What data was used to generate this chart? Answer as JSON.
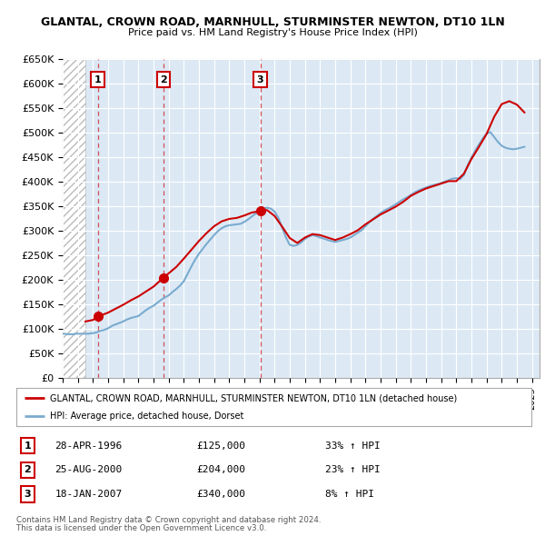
{
  "title": "GLANTAL, CROWN ROAD, MARNHULL, STURMINSTER NEWTON, DT10 1LN",
  "subtitle": "Price paid vs. HM Land Registry's House Price Index (HPI)",
  "ylim": [
    0,
    650000
  ],
  "yticks": [
    0,
    50000,
    100000,
    150000,
    200000,
    250000,
    300000,
    350000,
    400000,
    450000,
    500000,
    550000,
    600000,
    650000
  ],
  "ytick_labels": [
    "£0",
    "£50K",
    "£100K",
    "£150K",
    "£200K",
    "£250K",
    "£300K",
    "£350K",
    "£400K",
    "£450K",
    "£500K",
    "£550K",
    "£600K",
    "£650K"
  ],
  "xlim_start": 1994.0,
  "xlim_end": 2025.5,
  "hatch_end": 1995.5,
  "transactions": [
    {
      "id": 1,
      "date": "28-APR-1996",
      "year": 1996.32,
      "price": 125000,
      "pct": "33%",
      "direction": "↑"
    },
    {
      "id": 2,
      "date": "25-AUG-2000",
      "year": 2000.65,
      "price": 204000,
      "pct": "23%",
      "direction": "↑"
    },
    {
      "id": 3,
      "date": "18-JAN-2007",
      "year": 2007.05,
      "price": 340000,
      "pct": "8%",
      "direction": "↑"
    }
  ],
  "legend_label_red": "GLANTAL, CROWN ROAD, MARNHULL, STURMINSTER NEWTON, DT10 1LN (detached house)",
  "legend_label_blue": "HPI: Average price, detached house, Dorset",
  "footer1": "Contains HM Land Registry data © Crown copyright and database right 2024.",
  "footer2": "This data is licensed under the Open Government Licence v3.0.",
  "chart_bg": "#dce9f5",
  "red_color": "#cc0000",
  "blue_color": "#7aabcf",
  "hpi_data_years": [
    1994.0,
    1994.083,
    1994.167,
    1994.25,
    1994.333,
    1994.417,
    1994.5,
    1994.583,
    1994.667,
    1994.75,
    1994.833,
    1994.917,
    1995.0,
    1995.083,
    1995.167,
    1995.25,
    1995.333,
    1995.417,
    1995.5,
    1995.583,
    1995.667,
    1995.75,
    1995.833,
    1995.917,
    1996.0,
    1996.083,
    1996.167,
    1996.25,
    1996.333,
    1996.417,
    1996.5,
    1996.583,
    1996.667,
    1996.75,
    1996.833,
    1996.917,
    1997.0,
    1997.083,
    1997.167,
    1997.25,
    1997.333,
    1997.417,
    1997.5,
    1997.583,
    1997.667,
    1997.75,
    1997.833,
    1997.917,
    1998.0,
    1998.25,
    1998.5,
    1998.75,
    1999.0,
    1999.25,
    1999.5,
    1999.75,
    2000.0,
    2000.25,
    2000.5,
    2000.75,
    2001.0,
    2001.25,
    2001.5,
    2001.75,
    2002.0,
    2002.25,
    2002.5,
    2002.75,
    2003.0,
    2003.25,
    2003.5,
    2003.75,
    2004.0,
    2004.25,
    2004.5,
    2004.75,
    2005.0,
    2005.25,
    2005.5,
    2005.75,
    2006.0,
    2006.25,
    2006.5,
    2006.75,
    2007.0,
    2007.25,
    2007.5,
    2007.75,
    2008.0,
    2008.25,
    2008.5,
    2008.75,
    2009.0,
    2009.25,
    2009.5,
    2009.75,
    2010.0,
    2010.25,
    2010.5,
    2010.75,
    2011.0,
    2011.25,
    2011.5,
    2011.75,
    2012.0,
    2012.25,
    2012.5,
    2012.75,
    2013.0,
    2013.25,
    2013.5,
    2013.75,
    2014.0,
    2014.25,
    2014.5,
    2014.75,
    2015.0,
    2015.25,
    2015.5,
    2015.75,
    2016.0,
    2016.25,
    2016.5,
    2016.75,
    2017.0,
    2017.25,
    2017.5,
    2017.75,
    2018.0,
    2018.25,
    2018.5,
    2018.75,
    2019.0,
    2019.25,
    2019.5,
    2019.75,
    2020.0,
    2020.25,
    2020.5,
    2020.75,
    2021.0,
    2021.25,
    2021.5,
    2021.75,
    2022.0,
    2022.25,
    2022.5,
    2022.75,
    2023.0,
    2023.25,
    2023.5,
    2023.75,
    2024.0,
    2024.25,
    2024.5
  ],
  "hpi_data_values": [
    90000,
    90000,
    90000,
    89000,
    89000,
    89000,
    89000,
    89000,
    89000,
    89000,
    90000,
    90000,
    90000,
    90000,
    90000,
    90000,
    90000,
    90000,
    90000,
    90000,
    90000,
    90000,
    91000,
    91000,
    91000,
    92000,
    92000,
    93000,
    94000,
    95000,
    96000,
    97000,
    97000,
    98000,
    99000,
    100000,
    101000,
    103000,
    104000,
    106000,
    107000,
    108000,
    109000,
    110000,
    111000,
    112000,
    113000,
    114000,
    115000,
    119000,
    122000,
    124000,
    126000,
    132000,
    138000,
    143000,
    147000,
    153000,
    159000,
    164000,
    168000,
    175000,
    181000,
    188000,
    197000,
    212000,
    227000,
    241000,
    253000,
    263000,
    273000,
    282000,
    291000,
    299000,
    305000,
    309000,
    311000,
    312000,
    313000,
    314000,
    318000,
    323000,
    329000,
    335000,
    341000,
    345000,
    347000,
    345000,
    339000,
    326000,
    306000,
    286000,
    271000,
    269000,
    271000,
    276000,
    283000,
    288000,
    291000,
    289000,
    286000,
    284000,
    281000,
    279000,
    277000,
    279000,
    281000,
    283000,
    286000,
    291000,
    296000,
    301000,
    309000,
    317000,
    324000,
    330000,
    336000,
    341000,
    345000,
    349000,
    354000,
    359000,
    364000,
    368000,
    373000,
    378000,
    382000,
    385000,
    388000,
    391000,
    393000,
    395000,
    397000,
    400000,
    403000,
    406000,
    407000,
    405000,
    413000,
    433000,
    449000,
    463000,
    476000,
    488000,
    498000,
    501000,
    491000,
    481000,
    473000,
    469000,
    467000,
    466000,
    467000,
    469000,
    471000
  ],
  "price_line_years": [
    1995.5,
    1996.0,
    1996.32,
    1996.5,
    1997.0,
    1997.5,
    1998.0,
    1998.5,
    1999.0,
    1999.5,
    2000.0,
    2000.65,
    2001.0,
    2001.5,
    2002.0,
    2002.5,
    2003.0,
    2003.5,
    2004.0,
    2004.5,
    2005.0,
    2005.5,
    2006.0,
    2006.5,
    2007.05,
    2007.5,
    2008.0,
    2008.5,
    2009.0,
    2009.5,
    2010.0,
    2010.5,
    2011.0,
    2011.5,
    2012.0,
    2012.5,
    2013.0,
    2013.5,
    2014.0,
    2014.5,
    2015.0,
    2015.5,
    2016.0,
    2016.5,
    2017.0,
    2017.5,
    2018.0,
    2018.5,
    2019.0,
    2019.5,
    2020.0,
    2020.5,
    2021.0,
    2021.5,
    2022.0,
    2022.5,
    2023.0,
    2023.5,
    2024.0,
    2024.5
  ],
  "price_line_values": [
    115000,
    118000,
    125000,
    127000,
    133000,
    141000,
    149000,
    158000,
    166000,
    176000,
    186000,
    204000,
    213000,
    226000,
    243000,
    261000,
    279000,
    295000,
    309000,
    319000,
    324000,
    326000,
    331000,
    337000,
    340000,
    342000,
    330000,
    308000,
    285000,
    275000,
    286000,
    293000,
    291000,
    286000,
    281000,
    286000,
    293000,
    301000,
    313000,
    323000,
    333000,
    341000,
    349000,
    359000,
    371000,
    379000,
    386000,
    391000,
    396000,
    401000,
    401000,
    416000,
    446000,
    471000,
    497000,
    532000,
    558000,
    564000,
    557000,
    541000
  ]
}
